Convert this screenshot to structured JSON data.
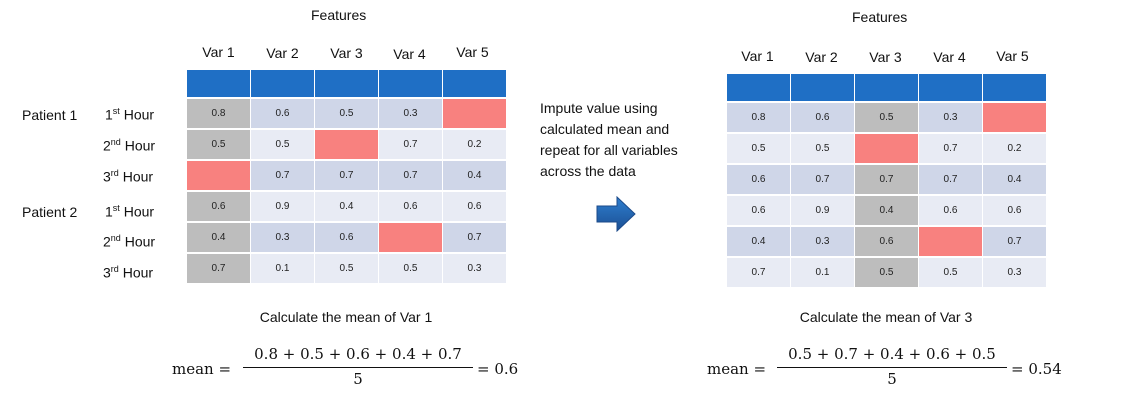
{
  "left": {
    "title": "Features",
    "columns": [
      "Var 1",
      "Var 2",
      "Var 3",
      "Var 4",
      "Var 5"
    ],
    "patients": [
      "Patient 1",
      "Patient 2"
    ],
    "hours": [
      {
        "base": "1",
        "sup": "st",
        "word": " Hour"
      },
      {
        "base": "2",
        "sup": "nd",
        "word": " Hour"
      },
      {
        "base": "3",
        "sup": "rd",
        "word": " Hour"
      },
      {
        "base": "1",
        "sup": "st",
        "word": " Hour"
      },
      {
        "base": "2",
        "sup": "nd",
        "word": " Hour"
      },
      {
        "base": "3",
        "sup": "rd",
        "word": " Hour"
      }
    ],
    "rows": [
      [
        "0.8",
        "0.6",
        "0.5",
        "0.3",
        ""
      ],
      [
        "0.5",
        "0.5",
        "",
        "0.7",
        "0.2"
      ],
      [
        "",
        "0.7",
        "0.7",
        "0.7",
        "0.4"
      ],
      [
        "0.6",
        "0.9",
        "0.4",
        "0.6",
        "0.6"
      ],
      [
        "0.4",
        "0.3",
        "0.6",
        "",
        "0.7"
      ],
      [
        "0.7",
        "0.1",
        "0.5",
        "0.5",
        "0.3"
      ]
    ],
    "highlight_column": 0,
    "caption": "Calculate the mean of Var 1",
    "formula": {
      "lhs": "mean =",
      "numerator": "0.8  +  0.5  +  0.6  +  0.4  +  0.7",
      "denominator": "5",
      "result": "= 0.6"
    }
  },
  "middle": {
    "note": [
      "Impute value using",
      "calculated mean and",
      "repeat for all variables",
      "across the data"
    ],
    "arrow_icon": "right-arrow-icon"
  },
  "right": {
    "title": "Features",
    "columns": [
      "Var 1",
      "Var 2",
      "Var 3",
      "Var 4",
      "Var 5"
    ],
    "rows": [
      [
        "0.8",
        "0.6",
        "0.5",
        "0.3",
        ""
      ],
      [
        "0.5",
        "0.5",
        "",
        "0.7",
        "0.2"
      ],
      [
        "0.6",
        "0.7",
        "0.7",
        "0.7",
        "0.4"
      ],
      [
        "0.6",
        "0.9",
        "0.4",
        "0.6",
        "0.6"
      ],
      [
        "0.4",
        "0.3",
        "0.6",
        "",
        "0.7"
      ],
      [
        "0.7",
        "0.1",
        "0.5",
        "0.5",
        "0.3"
      ]
    ],
    "highlight_column": 2,
    "caption": "Calculate the mean of Var 3",
    "formula": {
      "lhs": "mean =",
      "numerator": "0.5  +  0.7  +  0.4  +  0.6  +  0.5",
      "denominator": "5",
      "result": "= 0.54"
    }
  },
  "colors": {
    "header": "#1f6fc5",
    "row_dark": "#cfd6e8",
    "row_light": "#e8ebf4",
    "highlight": "#bdbdbd",
    "missing": "#f8817f",
    "arrow": "#1f5fa8"
  }
}
